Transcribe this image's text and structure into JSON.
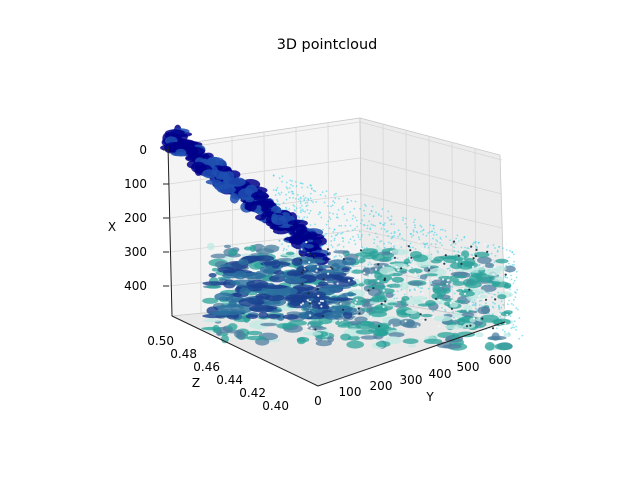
{
  "chart_data": {
    "type": "scatter",
    "projection": "3d",
    "title": "3D pointcloud",
    "grid": true,
    "axes": {
      "x": {
        "label": "X",
        "ticks": [
          "0",
          "100",
          "200",
          "300",
          "400"
        ],
        "range": [
          0,
          470
        ]
      },
      "y": {
        "label": "Y",
        "ticks": [
          "0",
          "100",
          "200",
          "300",
          "400",
          "500",
          "600"
        ],
        "range": [
          0,
          640
        ]
      },
      "z": {
        "label": "Z",
        "ticks": [
          "0.50",
          "0.48",
          "0.46",
          "0.44",
          "0.42",
          "0.40"
        ],
        "range": [
          0.39,
          0.5
        ]
      }
    },
    "colors": {
      "near": "#00008b",
      "mid": "#1f4fb0",
      "teal": "#2aa39a",
      "cyan": "#35d0e8",
      "light": "#bfe9e3",
      "grid": "#d3d3d3",
      "pane": "#f2f2f2"
    }
  }
}
